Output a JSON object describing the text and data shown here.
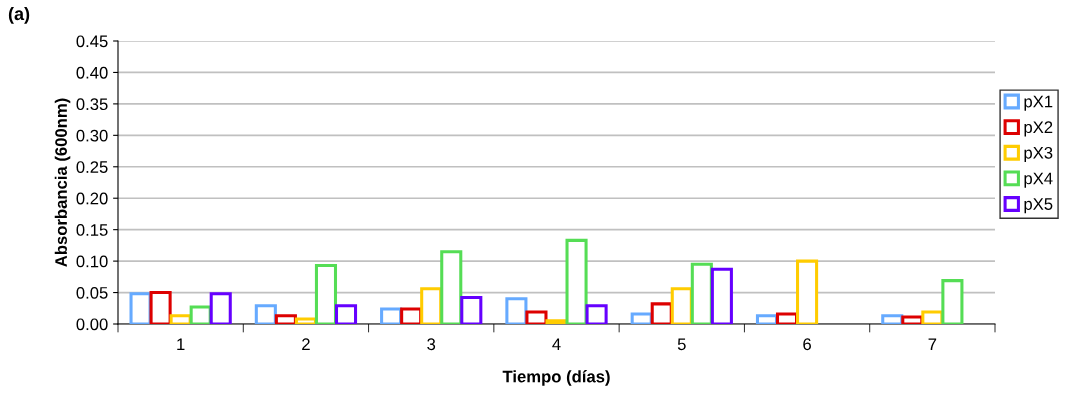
{
  "chart_data": {
    "type": "bar",
    "title": "(a)",
    "xlabel": "Tiempo (días)",
    "ylabel": "Absorbancia (600nm)",
    "categories": [
      "1",
      "2",
      "3",
      "4",
      "5",
      "6",
      "7"
    ],
    "series": [
      {
        "name": "pX1",
        "color": "#66aaff",
        "values": [
          0.048,
          0.029,
          0.024,
          0.04,
          0.016,
          0.013,
          0.013
        ]
      },
      {
        "name": "pX2",
        "color": "#dd0000",
        "values": [
          0.05,
          0.013,
          0.024,
          0.019,
          0.032,
          0.016,
          0.011
        ]
      },
      {
        "name": "pX3",
        "color": "#ffcc00",
        "values": [
          0.013,
          0.008,
          0.056,
          0.005,
          0.056,
          0.1,
          0.019
        ]
      },
      {
        "name": "pX4",
        "color": "#55dd55",
        "values": [
          0.027,
          0.093,
          0.115,
          0.133,
          0.095,
          null,
          0.069
        ]
      },
      {
        "name": "pX5",
        "color": "#6600ff",
        "values": [
          0.048,
          0.029,
          0.042,
          0.029,
          0.087,
          null,
          null
        ]
      }
    ],
    "ylim": [
      0,
      0.45
    ],
    "yticks": [
      {
        "value": 0,
        "label": "0.00"
      },
      {
        "value": 0.05,
        "label": "0.05"
      },
      {
        "value": 0.1,
        "label": "0.10"
      },
      {
        "value": 0.15,
        "label": "0.15"
      },
      {
        "value": 0.2,
        "label": "0.20"
      },
      {
        "value": 0.25,
        "label": "0.25"
      },
      {
        "value": 0.3,
        "label": "0.30"
      },
      {
        "value": 0.35,
        "label": "0.35"
      },
      {
        "value": 0.4,
        "label": "0.40"
      },
      {
        "value": 0.45,
        "label": "0.45"
      }
    ],
    "grid": "y",
    "legend": "right"
  }
}
